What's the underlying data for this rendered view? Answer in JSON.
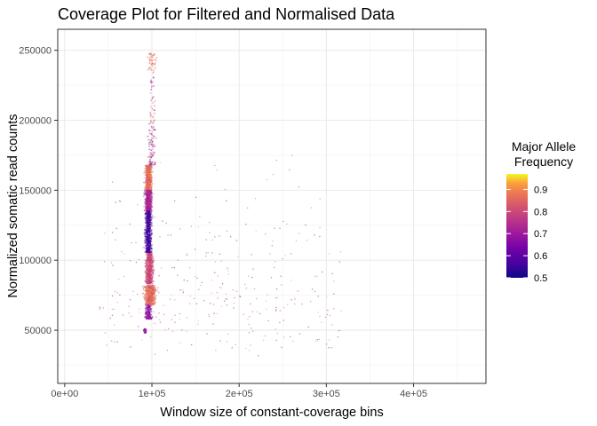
{
  "chart_data": {
    "type": "scatter",
    "title": "Coverage Plot for Filtered and Normalised Data",
    "xlabel": "Window size of constant-coverage bins",
    "ylabel": "Normalized somatic read counts",
    "xlim": [
      -8000,
      483000
    ],
    "ylim": [
      12000,
      265000
    ],
    "x_ticks": [
      0,
      100000,
      200000,
      300000,
      400000
    ],
    "x_tick_labels": [
      "0e+00",
      "1e+05",
      "2e+05",
      "3e+05",
      "4e+05"
    ],
    "y_ticks": [
      50000,
      100000,
      150000,
      200000,
      250000
    ],
    "y_tick_labels": [
      "50000",
      "100000",
      "150000",
      "200000",
      "250000"
    ],
    "grid": true,
    "theme": "white background, grey gridlines, black panel border",
    "color_scale": {
      "title": "Major Allele Frequency",
      "title_lines": [
        "Major Allele",
        "Frequency"
      ],
      "palette": "plasma",
      "range": [
        0.5,
        0.97
      ],
      "ticks": [
        0.5,
        0.6,
        0.7,
        0.8,
        0.9
      ],
      "tick_labels": [
        "0.5",
        "0.6",
        "0.7",
        "0.8",
        "0.9"
      ],
      "position": "right"
    },
    "point_clusters": [
      {
        "x_center": 96000,
        "x_spread": 6000,
        "y_min": 150000,
        "y_max": 168000,
        "color_value": [
          0.8,
          0.92
        ],
        "density": "high"
      },
      {
        "x_center": 96000,
        "x_spread": 6000,
        "y_min": 135000,
        "y_max": 150000,
        "color_value": [
          0.65,
          0.8
        ],
        "density": "high"
      },
      {
        "x_center": 96000,
        "x_spread": 6000,
        "y_min": 105000,
        "y_max": 135000,
        "color_value": [
          0.5,
          0.62
        ],
        "density": "high"
      },
      {
        "x_center": 97000,
        "x_spread": 7000,
        "y_min": 83000,
        "y_max": 105000,
        "color_value": [
          0.72,
          0.88
        ],
        "density": "high"
      },
      {
        "x_center": 98000,
        "x_spread": 10000,
        "y_min": 68000,
        "y_max": 82000,
        "color_value": [
          0.78,
          0.93
        ],
        "density": "high"
      },
      {
        "x_center": 96000,
        "x_spread": 6000,
        "y_min": 58000,
        "y_max": 68000,
        "color_value": [
          0.6,
          0.75
        ],
        "density": "medium"
      },
      {
        "x_center": 92000,
        "x_spread": 3000,
        "y_min": 48000,
        "y_max": 51000,
        "color_value": [
          0.6,
          0.8
        ],
        "density": "low"
      },
      {
        "x_center": 100000,
        "x_spread": 8000,
        "y_min": 235000,
        "y_max": 248000,
        "color_value": [
          0.8,
          0.92
        ],
        "density": "low"
      },
      {
        "x_center": 100000,
        "x_spread": 7000,
        "y_min": 168000,
        "y_max": 235000,
        "color_value": [
          0.6,
          0.9
        ],
        "density": "sparse"
      },
      {
        "x_center": 180000,
        "x_spread": 280000,
        "y_min": 30000,
        "y_max": 190000,
        "color_value": [
          0.6,
          0.92
        ],
        "density": "background"
      }
    ]
  }
}
